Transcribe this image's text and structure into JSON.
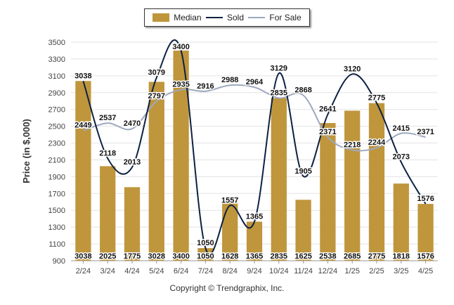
{
  "legend": {
    "median": "Median",
    "sold": "Sold",
    "for_sale": "For Sale"
  },
  "copyright": "Copyright © Trendgraphix, Inc.",
  "colors": {
    "median": "#BF963C",
    "sold": "#0D2142",
    "for_sale": "#9EA8BE",
    "grid": "#E3E3E3"
  },
  "chart_data": {
    "type": "bar",
    "ylabel": "Price (in $,000)",
    "xlabel": "",
    "ylim": [
      900,
      3500
    ],
    "yticks": [
      900,
      1100,
      1300,
      1500,
      1700,
      1900,
      2100,
      2300,
      2500,
      2700,
      2900,
      3100,
      3300,
      3500
    ],
    "grid": true,
    "legend_position": "top",
    "categories": [
      "2/24",
      "3/24",
      "4/24",
      "5/24",
      "6/24",
      "7/24",
      "8/24",
      "9/24",
      "10/24",
      "11/24",
      "12/24",
      "1/25",
      "2/25",
      "3/25",
      "4/25"
    ],
    "series": [
      {
        "name": "Median",
        "type": "bar",
        "values": [
          3038,
          2025,
          1775,
          3028,
          3400,
          1050,
          1628,
          1365,
          2835,
          1625,
          2538,
          2685,
          2775,
          1818,
          1576
        ]
      },
      {
        "name": "Sold",
        "type": "line",
        "values": [
          3038,
          2118,
          2013,
          3079,
          3400,
          1050,
          1557,
          1365,
          3129,
          1905,
          2641,
          3120,
          2775,
          2073,
          1576
        ]
      },
      {
        "name": "For Sale",
        "type": "line",
        "values": [
          2449,
          2537,
          2470,
          2797,
          2935,
          2916,
          2988,
          2964,
          2835,
          2868,
          2371,
          2218,
          2244,
          2415,
          2371
        ]
      }
    ]
  }
}
